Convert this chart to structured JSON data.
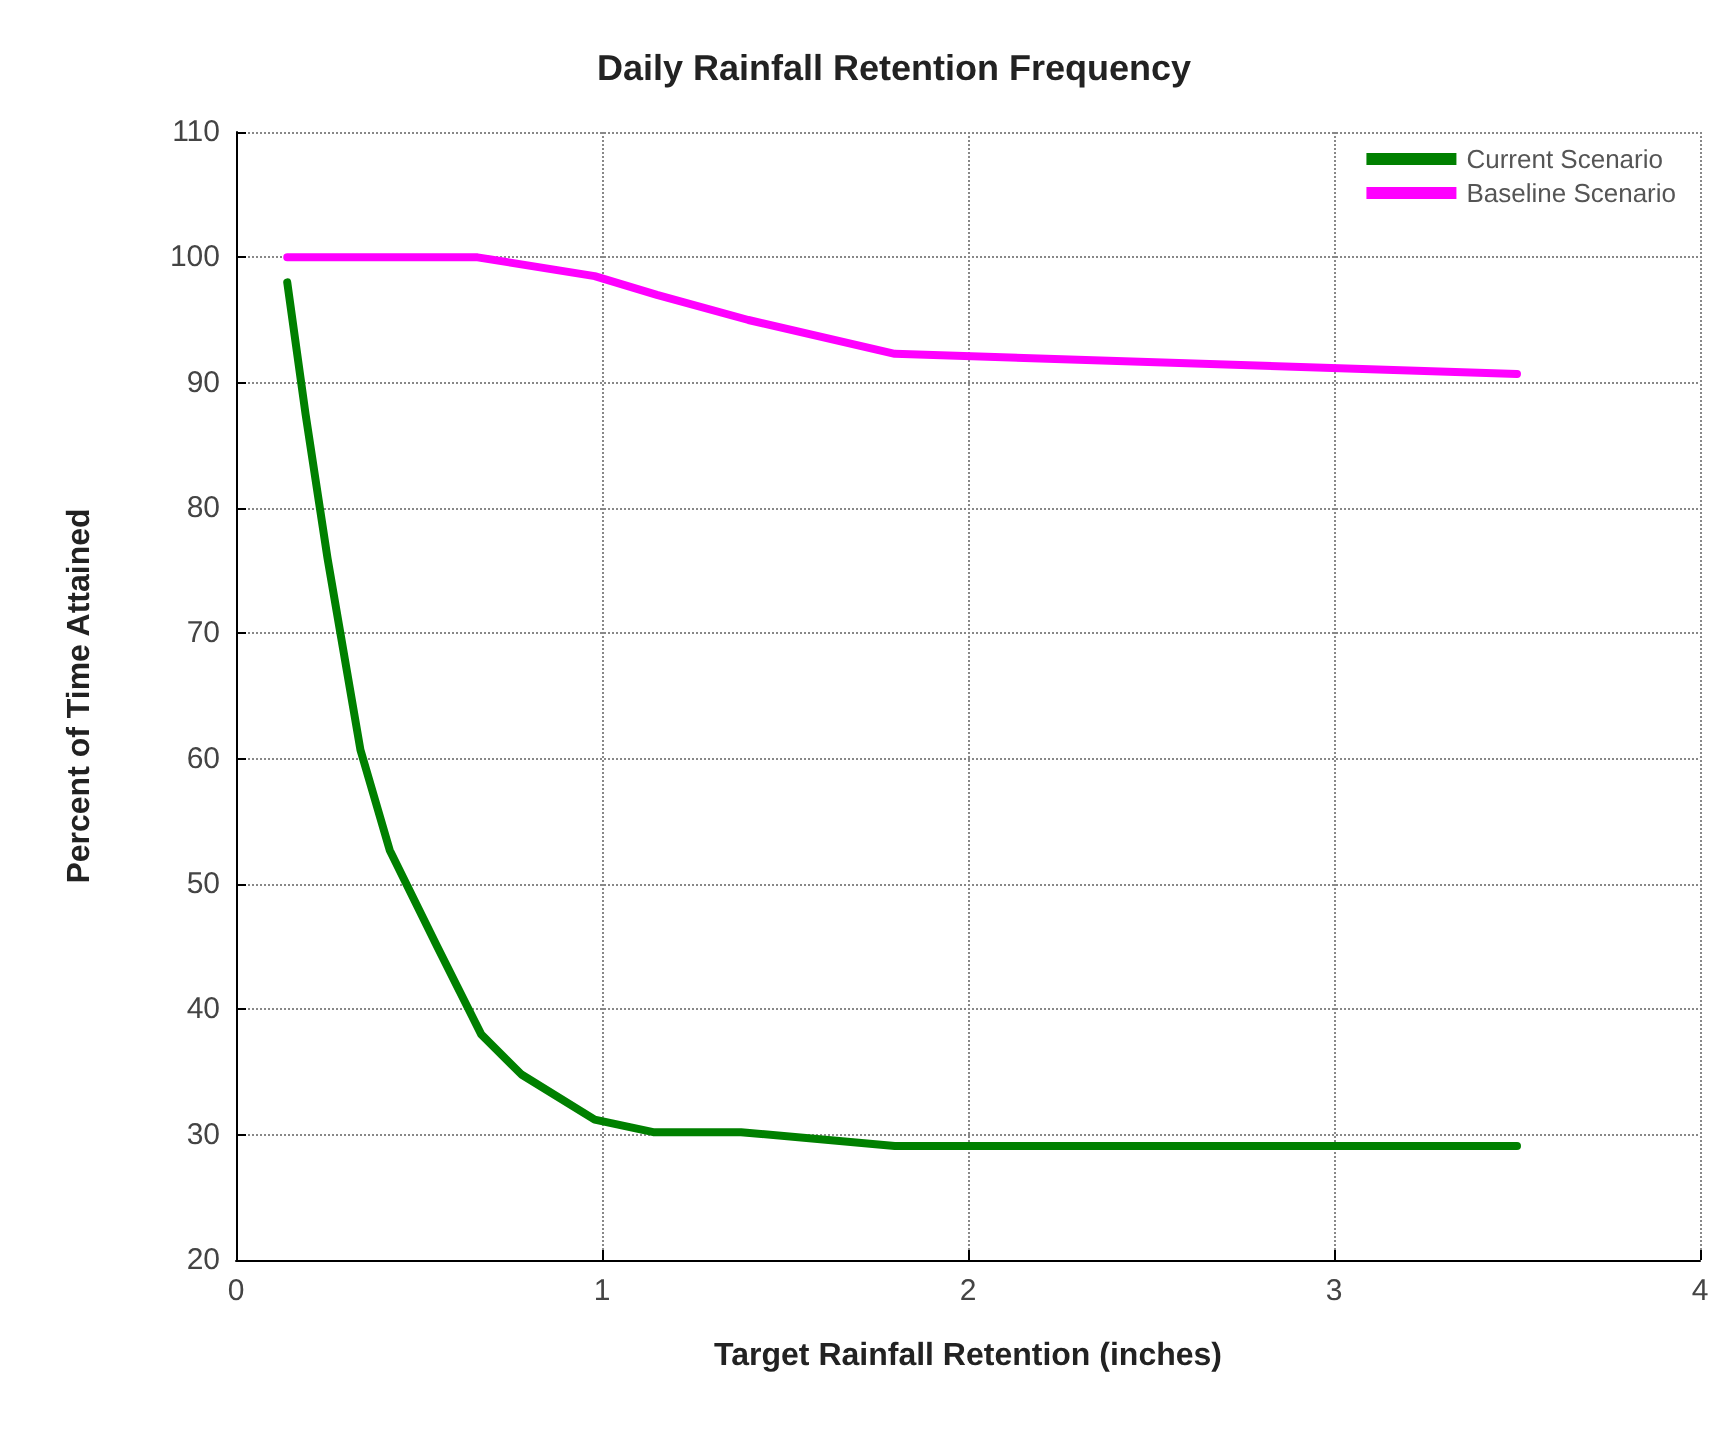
{
  "chart_data": {
    "type": "line",
    "title": "Daily Rainfall Retention Frequency",
    "xlabel": "Target Rainfall Retention (inches)",
    "ylabel": "Percent of Time Attained",
    "xlim": [
      0,
      4
    ],
    "xticks": [
      0,
      1,
      2,
      3,
      4
    ],
    "ylim": [
      20,
      110
    ],
    "yticks": [
      20,
      30,
      40,
      50,
      60,
      70,
      80,
      90,
      100,
      110
    ],
    "grid": true,
    "legend": "top right",
    "marker": "none",
    "line_style": "solid",
    "series": [
      {
        "name": "Current Scenario",
        "color": "#008000",
        "x": [
          0.14,
          0.19,
          0.25,
          0.34,
          0.42,
          0.55,
          0.67,
          0.78,
          0.98,
          1.14,
          1.38,
          1.8,
          3.5
        ],
        "values": [
          98,
          87.5,
          76,
          60.7,
          52.7,
          45,
          38,
          34.8,
          31.2,
          30.2,
          30.2,
          29.1,
          29.1
        ]
      },
      {
        "name": "Baseline Scenario",
        "color": "#ff00ff",
        "x": [
          0.14,
          0.66,
          0.98,
          1.15,
          1.4,
          1.8,
          3.5
        ],
        "values": [
          100,
          100,
          98.5,
          97,
          95,
          92.3,
          90.7
        ]
      }
    ]
  }
}
